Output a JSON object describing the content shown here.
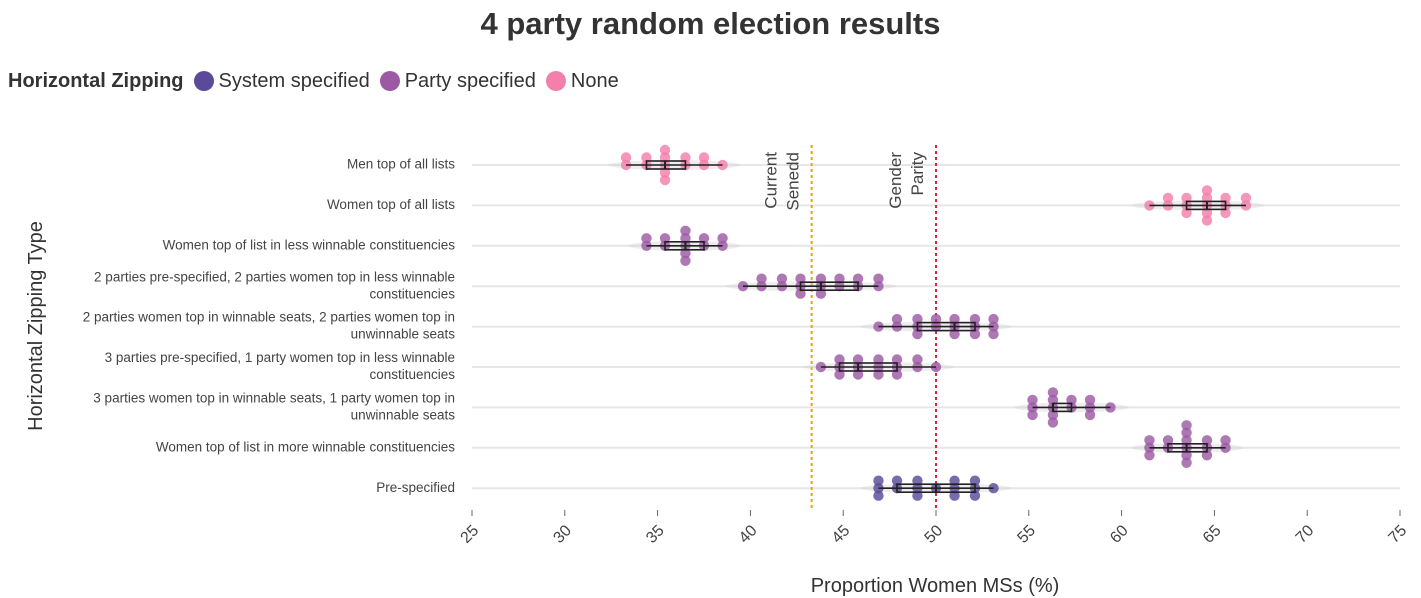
{
  "chart_data": {
    "type": "scatter",
    "title": "4 party random election results",
    "xlabel": "Proportion Women MSs (%)",
    "ylabel": "Horizontal Zipping Type",
    "xlim": [
      25,
      75
    ],
    "xticks": [
      "25",
      "30",
      "35",
      "40",
      "45",
      "50",
      "55",
      "60",
      "65",
      "70",
      "75"
    ],
    "legend": {
      "title": "Horizontal Zipping",
      "placement": "top-left",
      "entries": [
        {
          "name": "System specified",
          "color": "#5a4a99"
        },
        {
          "name": "Party specified",
          "color": "#9c5aa5"
        },
        {
          "name": "None",
          "color": "#f37fab"
        }
      ]
    },
    "reference_lines": [
      {
        "x": 43.3,
        "label_lines": [
          "Current",
          "Senedd"
        ],
        "color": "#e8a312"
      },
      {
        "x": 50,
        "label_lines": [
          "Gender",
          "Parity"
        ],
        "color": "#d7263d"
      }
    ],
    "categories": [
      {
        "label_lines": [
          "Men top of all lists"
        ],
        "group": "None",
        "values": [
          33.3,
          33.3,
          34.4,
          34.4,
          35.4,
          35.4,
          35.4,
          35.4,
          35.4,
          36.5,
          36.5,
          37.5,
          37.5,
          38.5
        ],
        "box": [
          33.3,
          34.4,
          35.4,
          36.5,
          38.5
        ]
      },
      {
        "label_lines": [
          "Women top of all lists"
        ],
        "group": "None",
        "values": [
          61.5,
          62.5,
          62.5,
          63.5,
          63.5,
          63.5,
          64.6,
          64.6,
          64.6,
          64.6,
          64.6,
          65.6,
          65.6,
          65.6,
          66.7,
          66.7
        ],
        "box": [
          61.5,
          63.5,
          64.6,
          65.6,
          66.7
        ]
      },
      {
        "label_lines": [
          "Women top of list in less winnable constituencies"
        ],
        "group": "Party specified",
        "values": [
          34.4,
          34.4,
          35.4,
          35.4,
          36.5,
          36.5,
          36.5,
          36.5,
          36.5,
          37.5,
          37.5,
          38.5,
          38.5
        ],
        "box": [
          34.4,
          35.4,
          36.5,
          37.5,
          38.5
        ]
      },
      {
        "label_lines": [
          "2 parties pre-specified, 2 parties women top in less winnable",
          "constituencies"
        ],
        "group": "Party specified",
        "values": [
          39.6,
          40.6,
          40.6,
          41.7,
          41.7,
          42.7,
          42.7,
          42.7,
          43.8,
          43.8,
          43.8,
          44.8,
          44.8,
          45.8,
          45.8,
          46.9,
          46.9
        ],
        "box": [
          39.6,
          42.7,
          43.8,
          45.8,
          46.9
        ]
      },
      {
        "label_lines": [
          "2 parties women top in winnable seats, 2 parties women top in",
          "unwinnable seats"
        ],
        "group": "Party specified",
        "values": [
          46.9,
          47.9,
          47.9,
          49,
          49,
          49,
          50,
          50,
          51,
          51,
          51,
          52.1,
          52.1,
          52.1,
          53.1,
          53.1,
          53.1
        ],
        "box": [
          46.9,
          49,
          51,
          52.1,
          53.1
        ]
      },
      {
        "label_lines": [
          "3 parties pre-specified, 1 party women top in less winnable",
          "constituencies"
        ],
        "group": "Party specified",
        "values": [
          43.8,
          44.8,
          44.8,
          44.8,
          45.8,
          45.8,
          45.8,
          46.9,
          46.9,
          46.9,
          47.9,
          47.9,
          47.9,
          49,
          49,
          50
        ],
        "box": [
          43.8,
          44.8,
          45.8,
          47.9,
          50
        ]
      },
      {
        "label_lines": [
          "3 parties women top in winnable seats, 1 party women top in",
          "unwinnable seats"
        ],
        "group": "Party specified",
        "values": [
          55.2,
          55.2,
          55.2,
          56.3,
          56.3,
          56.3,
          56.3,
          56.3,
          57.3,
          57.3,
          58.3,
          58.3,
          58.3,
          59.4
        ],
        "box": [
          55.2,
          56.3,
          56.3,
          57.3,
          59.4
        ]
      },
      {
        "label_lines": [
          "Women top of list in more winnable constituencies"
        ],
        "group": "Party specified",
        "values": [
          61.5,
          61.5,
          61.5,
          62.5,
          62.5,
          63.5,
          63.5,
          63.5,
          63.5,
          63.5,
          63.5,
          64.6,
          64.6,
          64.6,
          65.6,
          65.6
        ],
        "box": [
          61.5,
          62.5,
          63.5,
          64.6,
          65.6
        ]
      },
      {
        "label_lines": [
          "Pre-specified"
        ],
        "group": "System specified",
        "values": [
          46.9,
          46.9,
          46.9,
          47.9,
          47.9,
          49,
          49,
          49,
          50,
          51,
          51,
          51,
          52.1,
          52.1,
          52.1,
          53.1
        ],
        "box": [
          46.9,
          47.9,
          50,
          52.1,
          53.1
        ]
      }
    ]
  }
}
